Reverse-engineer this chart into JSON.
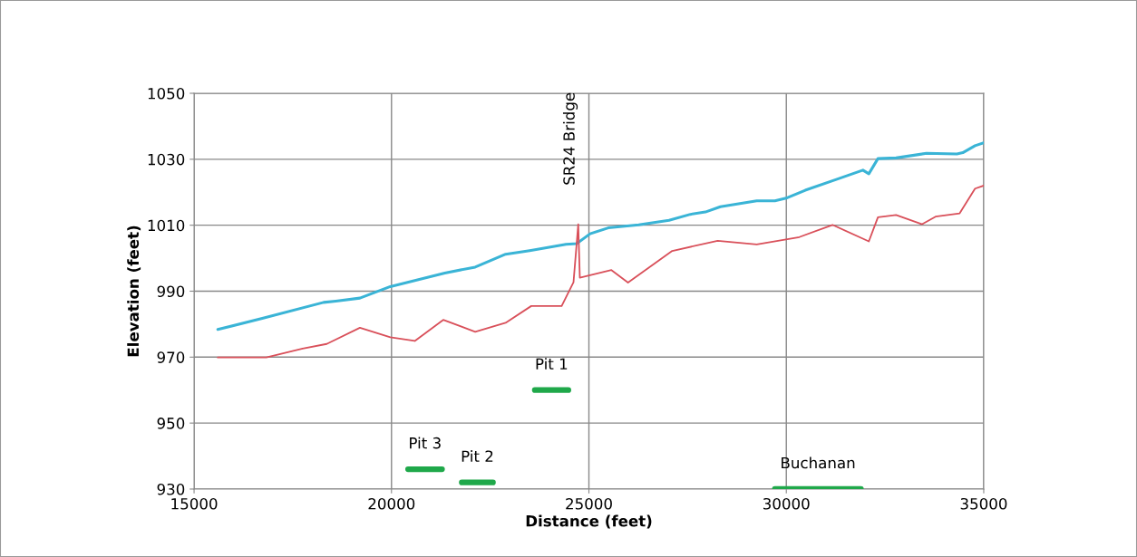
{
  "chart_data": {
    "type": "line",
    "xlabel": "Distance (feet)",
    "ylabel": "Elevation (feet)",
    "xlim": [
      15000,
      35000
    ],
    "xticks": [
      15000,
      20000,
      25000,
      30000,
      35000
    ],
    "ylim": [
      930,
      1050
    ],
    "yticks": [
      930,
      950,
      970,
      990,
      1010,
      1030,
      1050
    ],
    "grid": true,
    "legend": false,
    "series": [
      {
        "color": "#3ab4d6",
        "x": [
          15600,
          16750,
          18280,
          18590,
          19200,
          19970,
          20590,
          21350,
          22120,
          22890,
          23500,
          24420,
          24690,
          25030,
          25490,
          26260,
          27030,
          27570,
          27950,
          28330,
          29250,
          29710,
          30020,
          30480,
          31250,
          31940,
          32090,
          32320,
          32780,
          33550,
          34320,
          34470,
          34780,
          35000
        ],
        "values": [
          978.4,
          981.8,
          986.6,
          987,
          987.9,
          991.4,
          993.2,
          995.5,
          997.3,
          1001.2,
          1002.3,
          1004.2,
          1004.4,
          1007.4,
          1009.2,
          1010.1,
          1011.5,
          1013.3,
          1014,
          1015.6,
          1017.4,
          1017.4,
          1018.3,
          1020.6,
          1023.8,
          1026.7,
          1025.6,
          1030.2,
          1030.4,
          1031.8,
          1031.6,
          1032,
          1034.1,
          1035
        ]
      },
      {
        "color": "#d9505a",
        "x": [
          15600,
          16830,
          17750,
          18360,
          19200,
          19970,
          20590,
          21310,
          22120,
          22890,
          23540,
          24310,
          24610,
          24730,
          24770,
          25570,
          25990,
          27110,
          28260,
          29250,
          30330,
          31170,
          32090,
          32320,
          32780,
          33440,
          33780,
          34390,
          34780,
          35000
        ],
        "values": [
          969.9,
          969.9,
          972.6,
          974,
          978.9,
          976,
          974.9,
          981.3,
          977.7,
          980.4,
          985.5,
          985.5,
          992.7,
          1010.3,
          994.1,
          996.4,
          992.6,
          1002.2,
          1005.3,
          1004.2,
          1006.4,
          1010.1,
          1005.1,
          1012.4,
          1013.1,
          1010.3,
          1012.6,
          1013.6,
          1021.1,
          1022
        ]
      },
      {
        "name": "Pit 1",
        "color": "#1fa84a",
        "x": [
          23630,
          24480
        ],
        "values": [
          960,
          960
        ]
      },
      {
        "name": "Pit 3",
        "color": "#1fa84a",
        "x": [
          20420,
          21280
        ],
        "values": [
          936,
          936
        ]
      },
      {
        "name": "Pit 2",
        "color": "#1fa84a",
        "x": [
          21780,
          22570
        ],
        "values": [
          932,
          932
        ]
      },
      {
        "name": "Buchanan",
        "color": "#1fa84a",
        "x": [
          29710,
          31890
        ],
        "values": [
          930,
          930
        ]
      }
    ],
    "annotations": [
      "SR24 Bridge"
    ]
  }
}
